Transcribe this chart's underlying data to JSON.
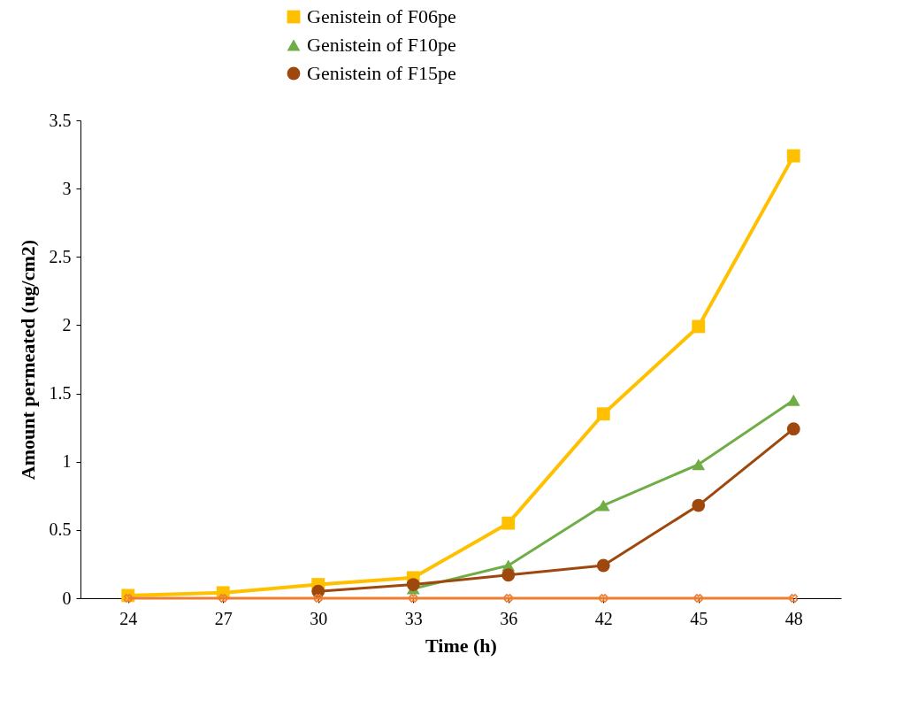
{
  "chart_data": {
    "type": "line",
    "xlabel": "Time (h)",
    "ylabel": "Amount permeated (ug/cm2)",
    "categories": [
      "24",
      "27",
      "30",
      "33",
      "36",
      "42",
      "45",
      "48"
    ],
    "ylim": [
      0,
      3.5
    ],
    "yticks": [
      0,
      0.5,
      1,
      1.5,
      2,
      2.5,
      3,
      3.5
    ],
    "grid": false,
    "legend": "top",
    "series": [
      {
        "name": "Genistein of F06pe",
        "color": "#ffc000",
        "marker": "square",
        "values": [
          0.02,
          0.04,
          0.1,
          0.15,
          0.55,
          1.35,
          1.99,
          3.24
        ]
      },
      {
        "name": "Genistein of F10pe",
        "color": "#70ad47",
        "marker": "triangle",
        "values": [
          null,
          null,
          null,
          0.07,
          0.24,
          0.68,
          0.98,
          1.45
        ]
      },
      {
        "name": "Genistein of F15pe",
        "color": "#9e480e",
        "marker": "circle",
        "values": [
          null,
          null,
          0.05,
          0.1,
          0.17,
          0.24,
          0.68,
          1.24
        ]
      },
      {
        "color": "#ed7d31",
        "marker": "cross",
        "values": [
          0,
          0,
          0,
          0,
          0,
          0,
          0,
          0
        ]
      }
    ]
  }
}
